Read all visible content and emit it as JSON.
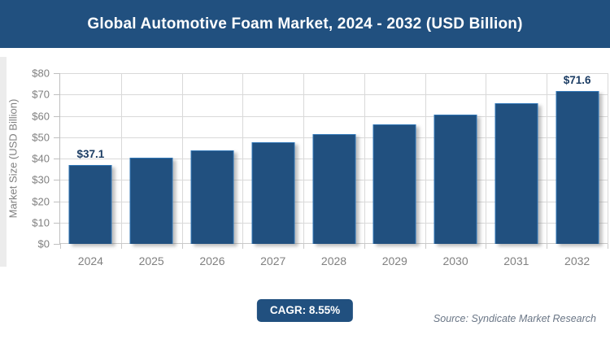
{
  "header": {
    "title": "Global Automotive Foam Market, 2024 - 2032 (USD Billion)"
  },
  "chart_data": {
    "type": "bar",
    "title": "Global Automotive Foam Market, 2024 - 2032 (USD Billion)",
    "categories": [
      "2024",
      "2025",
      "2026",
      "2027",
      "2028",
      "2029",
      "2030",
      "2031",
      "2032"
    ],
    "values": [
      37.1,
      40.3,
      43.7,
      47.5,
      51.5,
      55.9,
      60.7,
      65.9,
      71.6
    ],
    "data_labels": {
      "2024": "$37.1",
      "2032": "$71.6"
    },
    "xlabel": "",
    "ylabel": "Market Size (USD Billion)",
    "ylim": [
      0,
      80
    ],
    "ytick_step": 10,
    "yticks": [
      "$0",
      "$10",
      "$20",
      "$30",
      "$40",
      "$50",
      "$60",
      "$70",
      "$80"
    ],
    "grid": true,
    "legend": "none",
    "colors": {
      "bar_fill": "#21507f",
      "bar_border": "#2e75b6",
      "gridline": "#d9d9d9",
      "axis_line": "#bfbfbf",
      "tick_text": "#808080",
      "data_label_text": "#1b3c63"
    }
  },
  "footer": {
    "cagr_label": "CAGR: 8.55%",
    "source": "Source: Syndicate Market Research"
  }
}
